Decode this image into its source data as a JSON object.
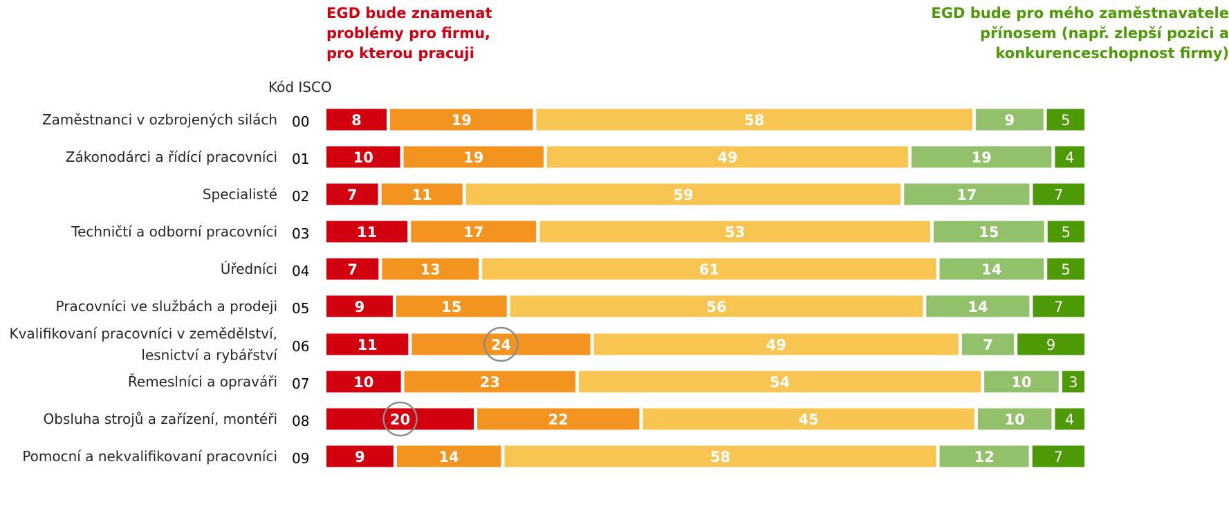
{
  "notes": {
    "negative": [
      "EGD bude znamenat",
      "problémy pro firmu,",
      "pro kterou pracuji"
    ],
    "positive": [
      "EGD bude pro mého zaměstnavatele",
      "přínosem (např. zlepší pozici a",
      "konkurenceschopnost firmy)"
    ]
  },
  "chart_data": {
    "type": "bar",
    "orientation": "horizontal",
    "stacked": true,
    "percent_scale": [
      0,
      100
    ],
    "code_header": "Kód ISCO",
    "categories": [
      {
        "label": [
          "Zaměstnanci v ozbrojených silách"
        ],
        "code": "00"
      },
      {
        "label": [
          "Zákonodárci a řídící pracovníci"
        ],
        "code": "01"
      },
      {
        "label": [
          "Specialisté"
        ],
        "code": "02"
      },
      {
        "label": [
          "Techničtí a odborní pracovníci"
        ],
        "code": "03"
      },
      {
        "label": [
          "Úředníci"
        ],
        "code": "04"
      },
      {
        "label": [
          "Pracovníci ve službách a prodeji"
        ],
        "code": "05"
      },
      {
        "label": [
          "Kvalifikovaní pracovníci v zemědělství,",
          "lesnictví a rybářství"
        ],
        "code": "06"
      },
      {
        "label": [
          "Řemeslníci a opraváři"
        ],
        "code": "07"
      },
      {
        "label": [
          "Obsluha strojů a zařízení, montéři"
        ],
        "code": "08"
      },
      {
        "label": [
          "Pomocní a nekvalifikovaní pracovníci"
        ],
        "code": "09"
      }
    ],
    "series": [
      {
        "color": "#d2000f",
        "values": [
          8,
          10,
          7,
          11,
          7,
          9,
          11,
          10,
          20,
          9
        ]
      },
      {
        "color": "#f39420",
        "values": [
          19,
          19,
          11,
          17,
          13,
          15,
          24,
          23,
          22,
          14
        ]
      },
      {
        "color": "#f8c553",
        "values": [
          58,
          49,
          59,
          53,
          61,
          56,
          49,
          54,
          45,
          58
        ]
      },
      {
        "color": "#93c16b",
        "values": [
          9,
          19,
          17,
          15,
          14,
          14,
          7,
          10,
          10,
          12
        ]
      },
      {
        "color": "#4e9a06",
        "values": [
          5,
          4,
          7,
          5,
          5,
          7,
          9,
          3,
          4,
          7
        ]
      }
    ],
    "highlighted": [
      {
        "category": "06",
        "series_index": 1
      },
      {
        "category": "08",
        "series_index": 0
      }
    ]
  }
}
